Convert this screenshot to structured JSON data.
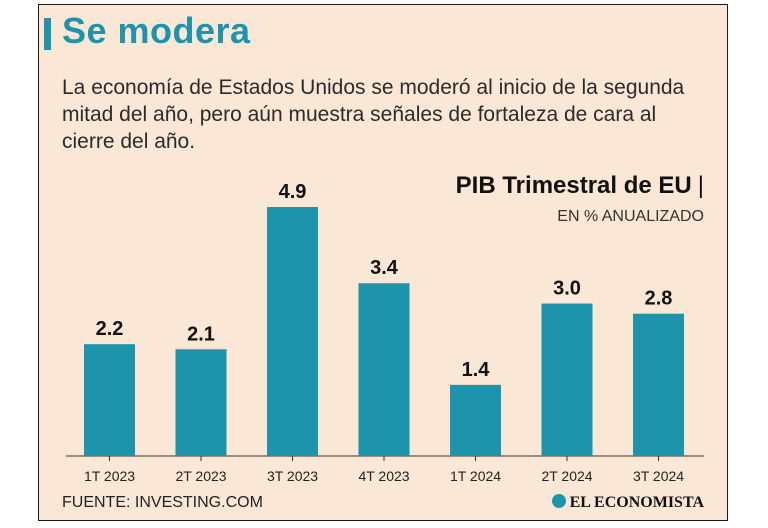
{
  "title": "Se modera",
  "subtitle": "La economía de Estados Unidos se moderó al inicio de la segunda mitad del año, pero aún muestra señales de fortaleza de cara al cierre del año.",
  "source": "FUENTE: INVESTING.COM",
  "brand": "EL ECONOMISTA",
  "colors": {
    "accent": "#1d94ab",
    "background": "#fbe7d6",
    "text": "#111111"
  },
  "chart_data": {
    "type": "bar",
    "title": "PIB Trimestral de EU",
    "title_separator": "|",
    "ylabel": "EN % ANUALIZADO",
    "categories": [
      "1T 2023",
      "2T 2023",
      "3T 2023",
      "4T 2023",
      "1T 2024",
      "2T 2024",
      "3T 2024"
    ],
    "values": [
      2.2,
      2.1,
      4.9,
      3.4,
      1.4,
      3.0,
      2.8
    ],
    "value_labels": [
      "2.2",
      "2.1",
      "4.9",
      "3.4",
      "1.4",
      "3.0",
      "2.8"
    ],
    "ylim": [
      0,
      5
    ],
    "grid": false,
    "legend": "none"
  }
}
